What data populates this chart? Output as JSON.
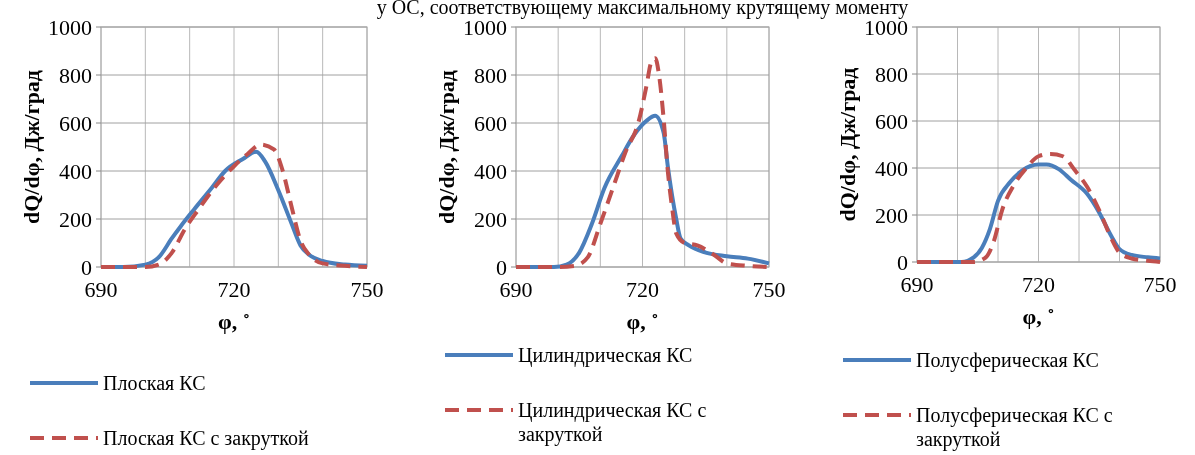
{
  "chart_data": [
    {
      "type": "line",
      "xlabel": "φ, ˚",
      "ylabel": "dQ/dφ, Дж/град",
      "xlim": [
        690,
        750
      ],
      "ylim": [
        0,
        1000
      ],
      "xticks": [
        690,
        {
          "value": 700,
          "label": null
        },
        {
          "value": 710,
          "label": null
        },
        720,
        {
          "value": 730,
          "label": null
        },
        {
          "value": 740,
          "label": null
        },
        750
      ],
      "yticks": [
        0,
        200,
        400,
        600,
        800,
        1000
      ],
      "grid": true,
      "legend": "bottom",
      "marker": "none",
      "series": [
        {
          "name": "Плоская КС",
          "color": "#4a7ebb",
          "line_style": "solid",
          "x": [
            690,
            695,
            700,
            703,
            706,
            708,
            711,
            715,
            718,
            722,
            725,
            727,
            730,
            733,
            735,
            737,
            740,
            745,
            750
          ],
          "values": [
            0,
            0,
            10,
            40,
            120,
            170,
            240,
            330,
            400,
            450,
            480,
            440,
            320,
            180,
            90,
            50,
            25,
            10,
            5
          ]
        },
        {
          "name": "Плоская КС с закруткой",
          "color": "#c0504d",
          "line_style": "dashed",
          "x": [
            690,
            700,
            703,
            706,
            709,
            712,
            716,
            720,
            723,
            726,
            729,
            731,
            733,
            735,
            737,
            740,
            745,
            750
          ],
          "values": [
            0,
            0,
            10,
            60,
            160,
            240,
            340,
            420,
            470,
            510,
            490,
            400,
            250,
            110,
            50,
            15,
            5,
            0
          ]
        }
      ]
    },
    {
      "type": "line",
      "title": "у ОС, соответствующему максимальному крутящему моменту",
      "xlabel": "φ, ˚",
      "ylabel": "dQ/dφ, Дж/град",
      "xlim": [
        690,
        750
      ],
      "ylim": [
        0,
        1000
      ],
      "xticks": [
        690,
        {
          "value": 700,
          "label": null
        },
        {
          "value": 710,
          "label": null
        },
        720,
        {
          "value": 730,
          "label": null
        },
        {
          "value": 740,
          "label": null
        },
        750
      ],
      "yticks": [
        0,
        200,
        400,
        600,
        800,
        1000
      ],
      "grid": true,
      "legend": "bottom",
      "marker": "none",
      "series": [
        {
          "name": "Цилиндрическая КС",
          "color": "#4a7ebb",
          "line_style": "solid",
          "x": [
            690,
            699,
            702,
            705,
            708,
            711,
            715,
            718,
            721,
            723,
            725,
            726,
            728,
            729,
            731,
            735,
            740,
            745,
            750
          ],
          "values": [
            0,
            0,
            10,
            60,
            180,
            330,
            460,
            550,
            610,
            630,
            560,
            420,
            200,
            120,
            90,
            60,
            45,
            35,
            15
          ]
        },
        {
          "name": "Цилиндрическая КС с закруткой",
          "color": "#c0504d",
          "line_style": "dashed",
          "x": [
            690,
            700,
            704,
            707,
            710,
            713,
            716,
            719,
            721,
            722,
            723,
            724,
            725,
            726,
            727,
            728,
            730,
            733,
            737,
            740,
            745,
            750
          ],
          "values": [
            0,
            0,
            5,
            40,
            180,
            330,
            480,
            600,
            760,
            850,
            870,
            790,
            620,
            400,
            250,
            140,
            100,
            90,
            50,
            15,
            5,
            0
          ]
        }
      ]
    },
    {
      "type": "line",
      "xlabel": "φ, ˚",
      "ylabel": "dQ/dφ, Дж/град",
      "xlim": [
        690,
        750
      ],
      "ylim": [
        0,
        1000
      ],
      "xticks": [
        690,
        {
          "value": 700,
          "label": null
        },
        {
          "value": 710,
          "label": null
        },
        720,
        {
          "value": 730,
          "label": null
        },
        {
          "value": 740,
          "label": null
        },
        750
      ],
      "yticks": [
        0,
        200,
        400,
        600,
        800,
        1000
      ],
      "grid": true,
      "legend": "bottom",
      "marker": "none",
      "series": [
        {
          "name": "Полусферическая КС",
          "color": "#4a7ebb",
          "line_style": "solid",
          "x": [
            690,
            701,
            704,
            706,
            708,
            710,
            713,
            716,
            720,
            722,
            725,
            728,
            732,
            735,
            738,
            740,
            743,
            747,
            750
          ],
          "values": [
            0,
            0,
            20,
            60,
            140,
            260,
            340,
            390,
            415,
            415,
            395,
            350,
            290,
            210,
            110,
            55,
            30,
            20,
            15
          ]
        },
        {
          "name": "Полусферическая КС с закруткой",
          "color": "#c0504d",
          "line_style": "dashed",
          "x": [
            690,
            704,
            707,
            709,
            711,
            714,
            717,
            720,
            723,
            726,
            729,
            732,
            735,
            738,
            740,
            743,
            747,
            750
          ],
          "values": [
            0,
            0,
            20,
            90,
            220,
            330,
            400,
            450,
            460,
            450,
            390,
            320,
            220,
            100,
            40,
            15,
            5,
            0
          ]
        }
      ]
    }
  ]
}
